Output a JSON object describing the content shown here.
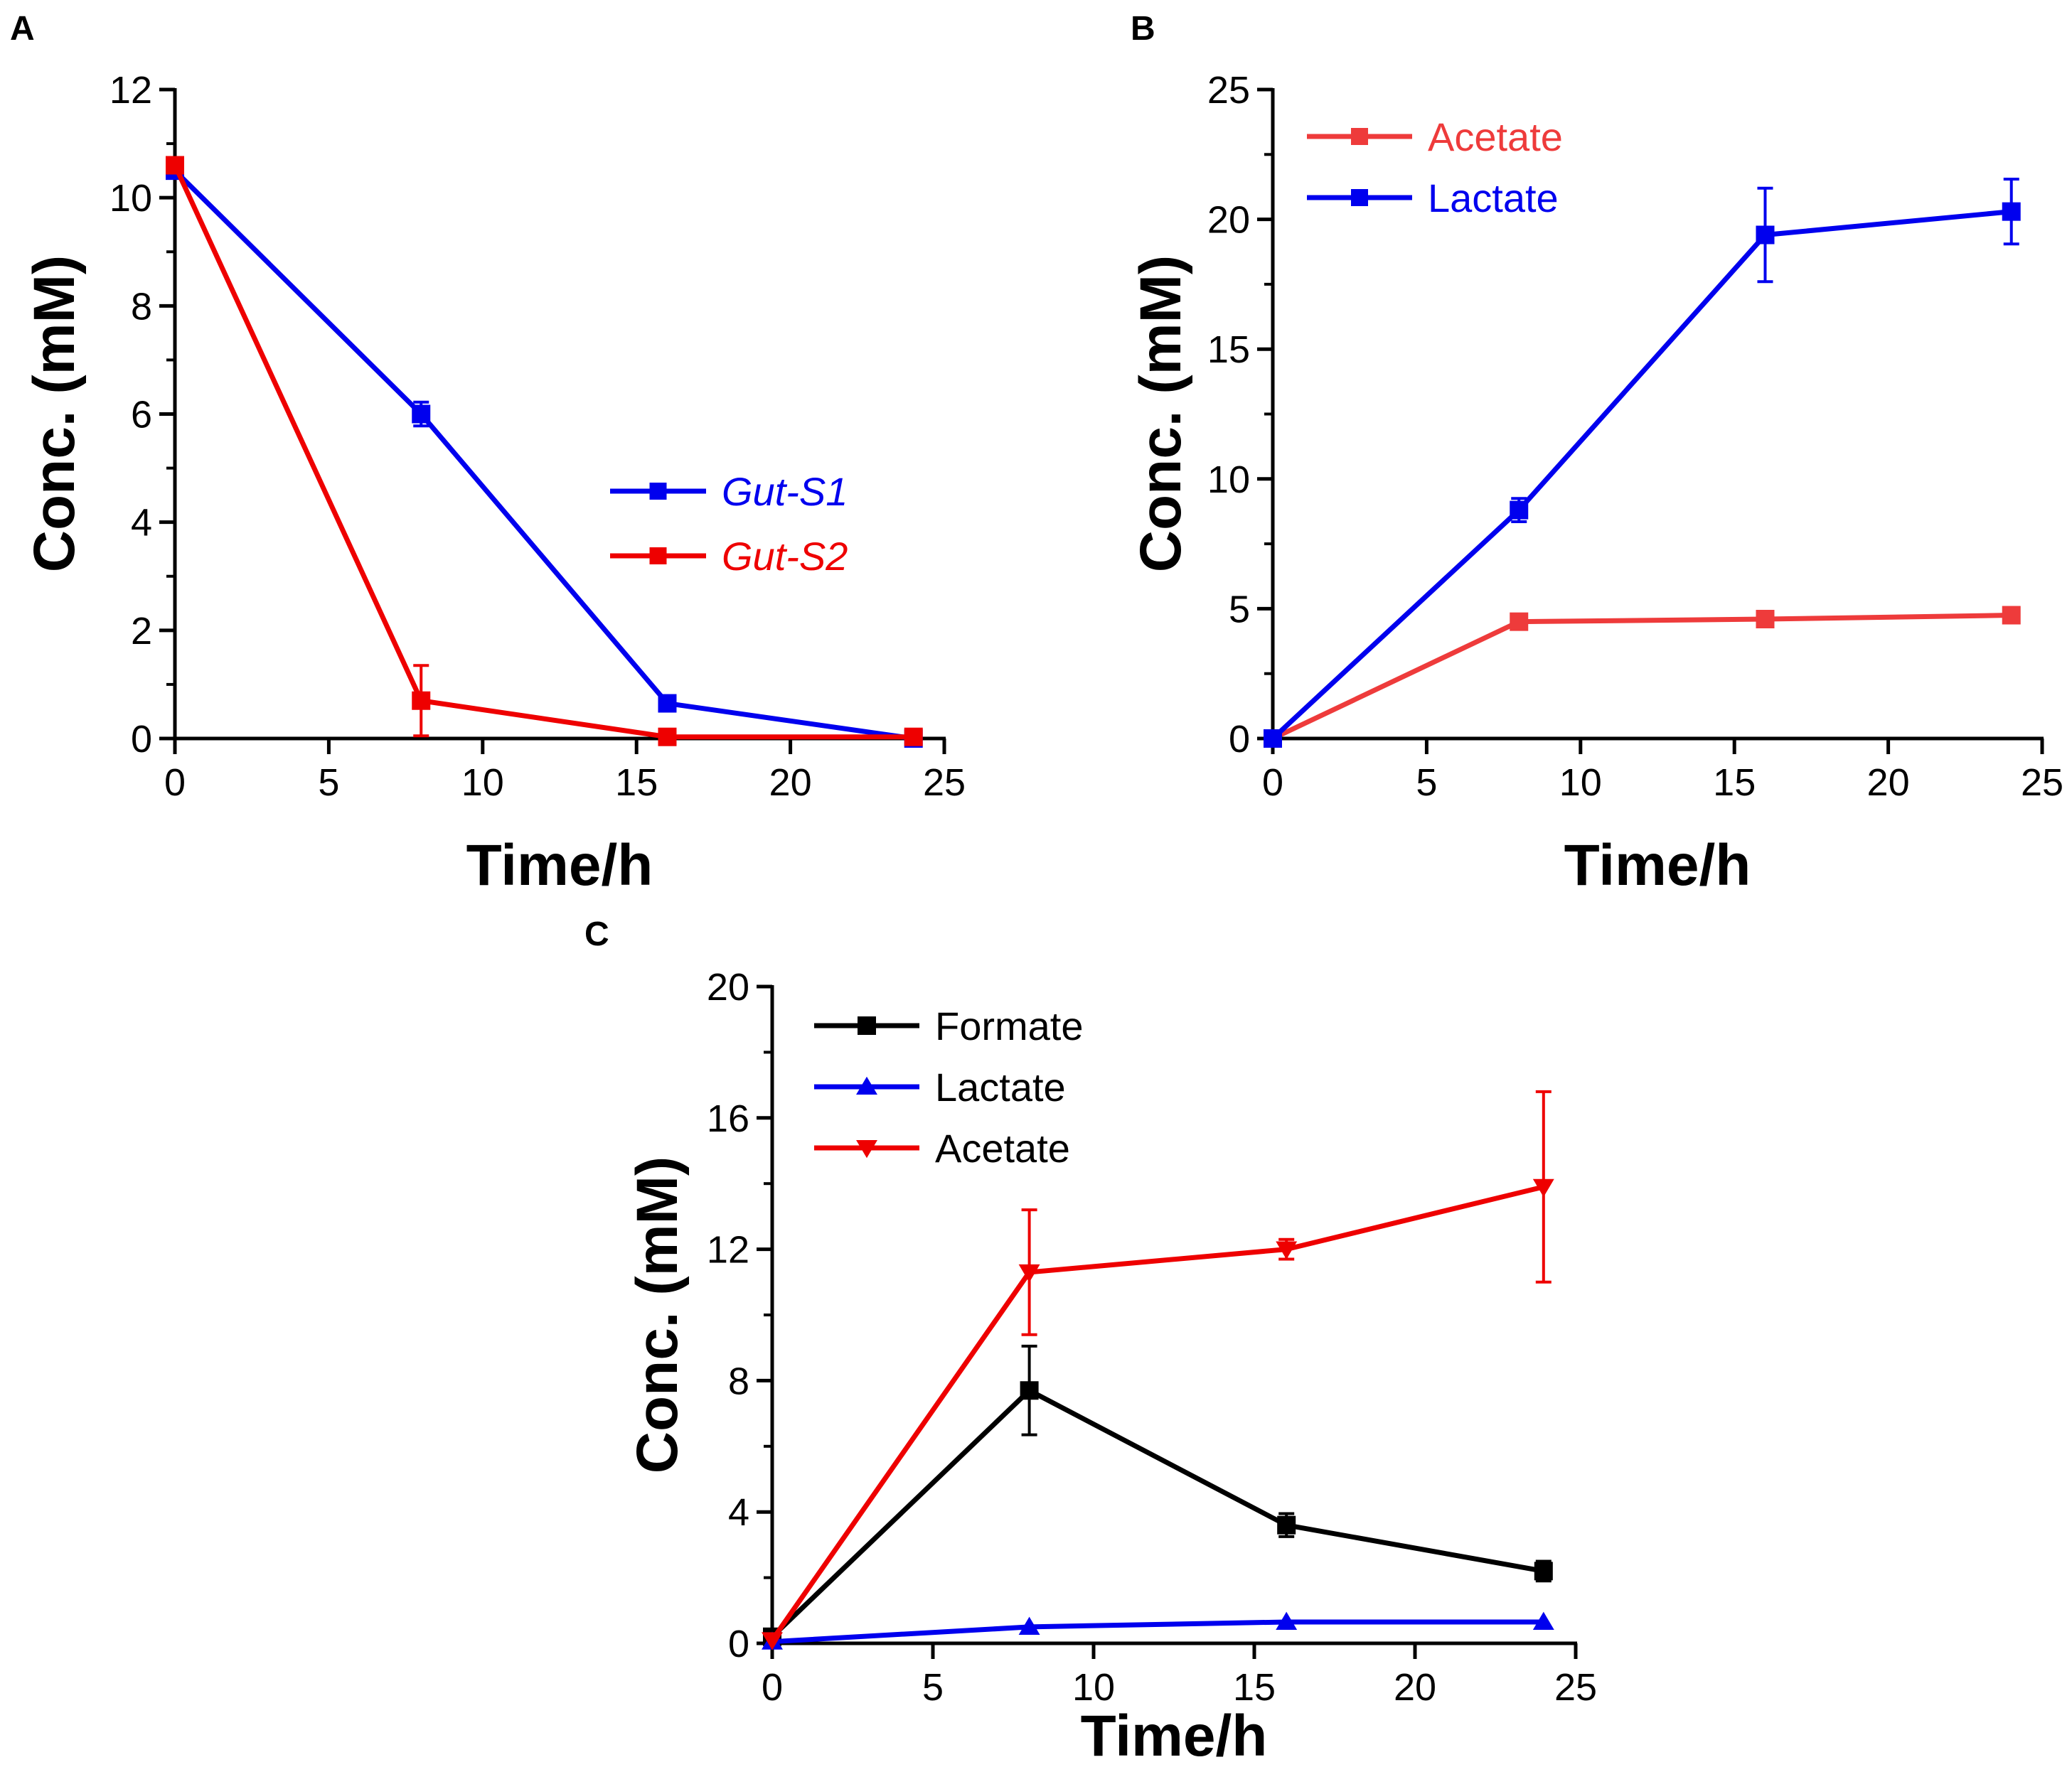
{
  "chart_data": [
    {
      "panel": "A",
      "type": "line",
      "title": "",
      "xlabel": "Time/h",
      "ylabel": "Conc. (mM)",
      "xlim": [
        0,
        25
      ],
      "ylim": [
        0,
        12
      ],
      "xticks": [
        0,
        5,
        10,
        15,
        20,
        25
      ],
      "yticks": [
        0,
        2,
        4,
        6,
        8,
        10,
        12
      ],
      "grid": false,
      "legend_position": "center-right",
      "legend_italic": true,
      "series": [
        {
          "name": "Gut-S1",
          "color": "#0000ee",
          "marker": "square",
          "x": [
            0,
            8,
            16,
            24
          ],
          "y": [
            10.5,
            6.0,
            0.65,
            0.0
          ],
          "err": [
            0.12,
            0.22,
            0.12,
            0.0
          ]
        },
        {
          "name": "Gut-S2",
          "color": "#ee0000",
          "marker": "square",
          "x": [
            0,
            8,
            16,
            24
          ],
          "y": [
            10.6,
            0.7,
            0.03,
            0.03
          ],
          "err": [
            0.1,
            0.65,
            0.0,
            0.0
          ]
        }
      ]
    },
    {
      "panel": "B",
      "type": "line",
      "title": "",
      "xlabel": "Time/h",
      "ylabel": "Conc. (mM)",
      "xlim": [
        0,
        25
      ],
      "ylim": [
        0,
        25
      ],
      "xticks": [
        0,
        5,
        10,
        15,
        20,
        25
      ],
      "yticks": [
        0,
        5,
        10,
        15,
        20,
        25
      ],
      "grid": false,
      "legend_position": "top-left",
      "legend_italic": false,
      "series": [
        {
          "name": "Acetate",
          "color": "#ee3b3b",
          "marker": "square",
          "x": [
            0,
            8,
            16,
            24
          ],
          "y": [
            0.0,
            4.5,
            4.6,
            4.75
          ],
          "err": [
            0.0,
            0.15,
            0.1,
            0.15
          ]
        },
        {
          "name": "Lactate",
          "color": "#0000ee",
          "marker": "square",
          "x": [
            0,
            8,
            16,
            24
          ],
          "y": [
            0.0,
            8.8,
            19.4,
            20.3
          ],
          "err": [
            0.0,
            0.45,
            1.8,
            1.25
          ]
        }
      ]
    },
    {
      "panel": "C",
      "type": "line",
      "title": "",
      "xlabel": "Time/h",
      "ylabel": "Conc. (mM)",
      "xlim": [
        0,
        25
      ],
      "ylim": [
        0,
        20
      ],
      "xticks": [
        0,
        5,
        10,
        15,
        20,
        25
      ],
      "yticks": [
        0,
        4,
        8,
        12,
        16,
        20
      ],
      "grid": false,
      "legend_position": "top-left",
      "legend_italic": false,
      "series": [
        {
          "name": "Formate",
          "color": "#000000",
          "marker": "square",
          "x": [
            0,
            8,
            16,
            24
          ],
          "y": [
            0.2,
            7.7,
            3.6,
            2.2
          ],
          "err": [
            0.0,
            1.35,
            0.35,
            0.3
          ]
        },
        {
          "name": "Lactate",
          "color": "#0000ee",
          "marker": "triangle-up",
          "x": [
            0,
            8,
            16,
            24
          ],
          "y": [
            0.05,
            0.5,
            0.65,
            0.65
          ],
          "err": [
            0.0,
            0.0,
            0.0,
            0.0
          ]
        },
        {
          "name": "Acetate",
          "color": "#ee0000",
          "marker": "triangle-down",
          "x": [
            0,
            8,
            16,
            24
          ],
          "y": [
            0.1,
            11.3,
            12.0,
            13.9
          ],
          "err": [
            0.0,
            1.9,
            0.3,
            2.9
          ]
        }
      ]
    }
  ]
}
